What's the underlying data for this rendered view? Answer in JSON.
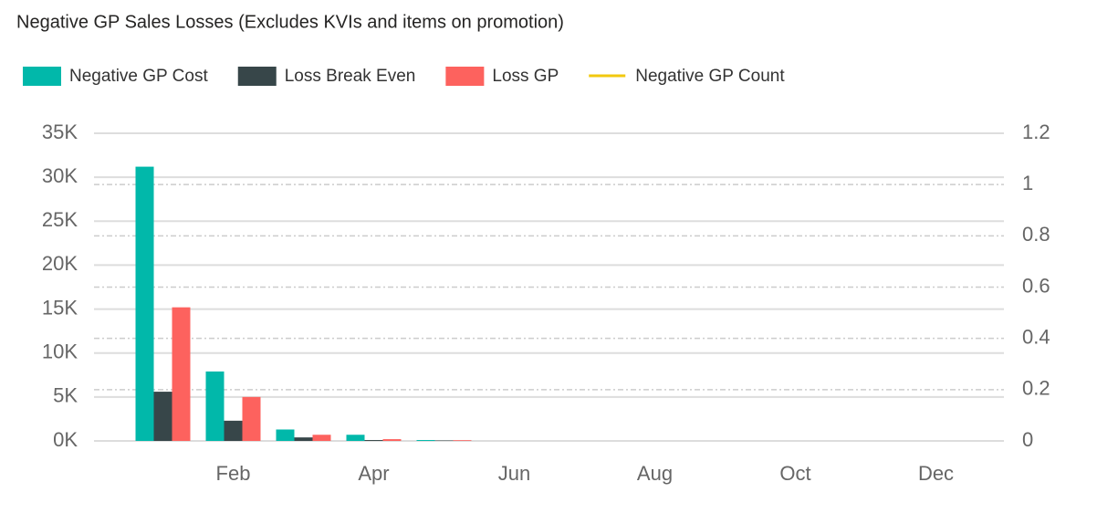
{
  "chart_data": {
    "type": "bar",
    "title": "Negative GP Sales Losses (Excludes KVIs and items on promotion)",
    "categories": [
      null,
      "Feb",
      null,
      "Apr",
      null,
      "Jun",
      null,
      "Aug",
      null,
      "Oct",
      null,
      "Dec"
    ],
    "series": [
      {
        "name": "Negative GP Cost",
        "color": "#01b8aa",
        "values": [
          31200,
          7900,
          1300,
          700,
          100,
          0,
          0,
          0,
          0,
          0,
          0,
          0
        ]
      },
      {
        "name": "Loss Break Even",
        "color": "#374649",
        "values": [
          5600,
          2300,
          400,
          100,
          50,
          0,
          0,
          0,
          0,
          0,
          0,
          0
        ]
      },
      {
        "name": "Loss GP",
        "color": "#fd625e",
        "values": [
          15200,
          5000,
          700,
          200,
          80,
          0,
          0,
          0,
          0,
          0,
          0,
          0
        ]
      },
      {
        "name": "Negative GP Count",
        "color": "#f2c80f",
        "type": "line",
        "axis": "y2",
        "values": [
          null,
          null,
          null,
          null,
          null,
          null,
          null,
          null,
          null,
          null,
          null,
          null
        ]
      }
    ],
    "ylim": [
      0,
      35000
    ],
    "yticks": [
      {
        "value": 0,
        "label": "0K"
      },
      {
        "value": 5000,
        "label": "5K"
      },
      {
        "value": 10000,
        "label": "10K"
      },
      {
        "value": 15000,
        "label": "15K"
      },
      {
        "value": 20000,
        "label": "20K"
      },
      {
        "value": 25000,
        "label": "25K"
      },
      {
        "value": 30000,
        "label": "30K"
      },
      {
        "value": 35000,
        "label": "35K"
      }
    ],
    "y2lim": [
      0,
      1.2
    ],
    "y2ticks": [
      0,
      0.2,
      0.4,
      0.6,
      0.8,
      1,
      1.2
    ],
    "grid": true,
    "legend": "top-left"
  }
}
